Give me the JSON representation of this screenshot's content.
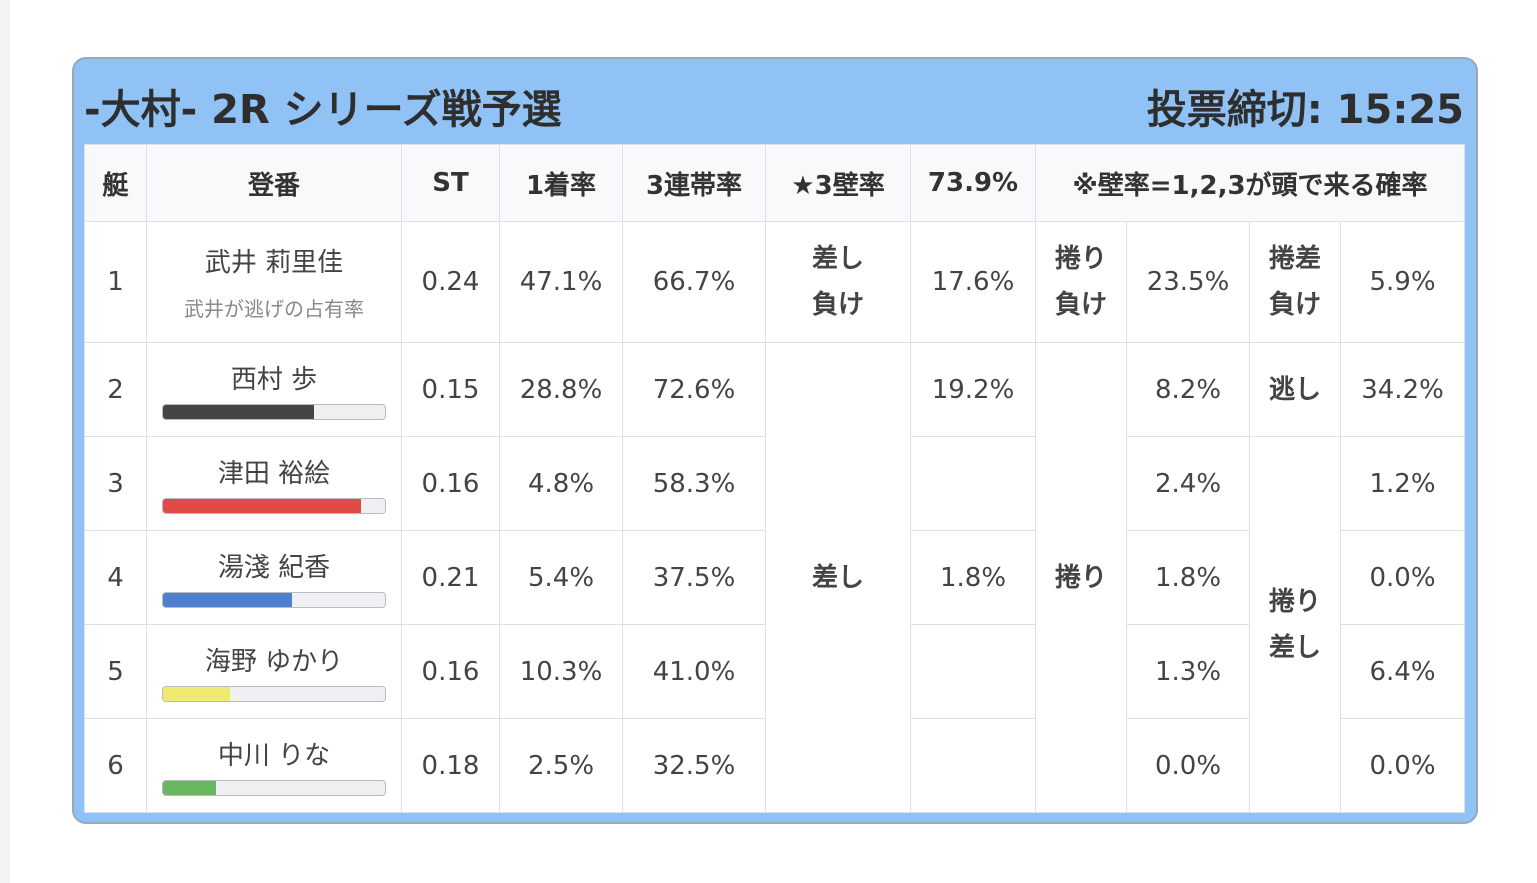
{
  "header": {
    "race_title": "-大村- 2R シリーズ戦予選",
    "deadline": "投票締切: 15:25"
  },
  "columns": {
    "lane": "艇",
    "reg": "登番",
    "st": "ST",
    "first_rate": "1着率",
    "top3_rate": "3連帯率",
    "wall_label": "★3壁率",
    "wall_value": "73.9%",
    "wall_note": "※壁率=1,2,3が頭で来る確率"
  },
  "labels": {
    "sashi_make_1": "差し",
    "sashi_make_2": "負け",
    "makuri_make_1": "捲り",
    "makuri_make_2": "負け",
    "makusa_make_1": "捲差",
    "makusa_make_2": "負け",
    "nigashi": "逃し",
    "sashi": "差し",
    "makuri": "捲り",
    "makuri_sashi_1": "捲り",
    "makuri_sashi_2": "差し"
  },
  "rows": [
    {
      "lane": "1",
      "name": "武井 莉里佳",
      "sub": "武井が逃げの占有率",
      "st": "0.24",
      "first": "47.1%",
      "top3": "66.7%",
      "c1": "17.6%",
      "c2": "23.5%",
      "c3": "5.9%"
    },
    {
      "lane": "2",
      "name": "西村 歩",
      "st": "0.15",
      "first": "28.8%",
      "top3": "72.6%",
      "c1": "19.2%",
      "c2": "8.2%",
      "c3": "34.2%",
      "bar": 0.68,
      "color": "#454545"
    },
    {
      "lane": "3",
      "name": "津田 裕絵",
      "st": "0.16",
      "first": "4.8%",
      "top3": "58.3%",
      "c1": "",
      "c2": "2.4%",
      "c3": "1.2%",
      "bar": 0.89,
      "color": "#e04b48"
    },
    {
      "lane": "4",
      "name": "湯淺 紀香",
      "st": "0.21",
      "first": "5.4%",
      "top3": "37.5%",
      "c1": "1.8%",
      "c2": "1.8%",
      "c3": "0.0%",
      "bar": 0.58,
      "color": "#4f7fcf"
    },
    {
      "lane": "5",
      "name": "海野 ゆかり",
      "st": "0.16",
      "first": "10.3%",
      "top3": "41.0%",
      "c1": "",
      "c2": "1.3%",
      "c3": "6.4%",
      "bar": 0.3,
      "color": "#eeea70"
    },
    {
      "lane": "6",
      "name": "中川 りな",
      "st": "0.18",
      "first": "2.5%",
      "top3": "32.5%",
      "c1": "",
      "c2": "0.0%",
      "c3": "0.0%",
      "bar": 0.24,
      "color": "#6ab560"
    }
  ]
}
